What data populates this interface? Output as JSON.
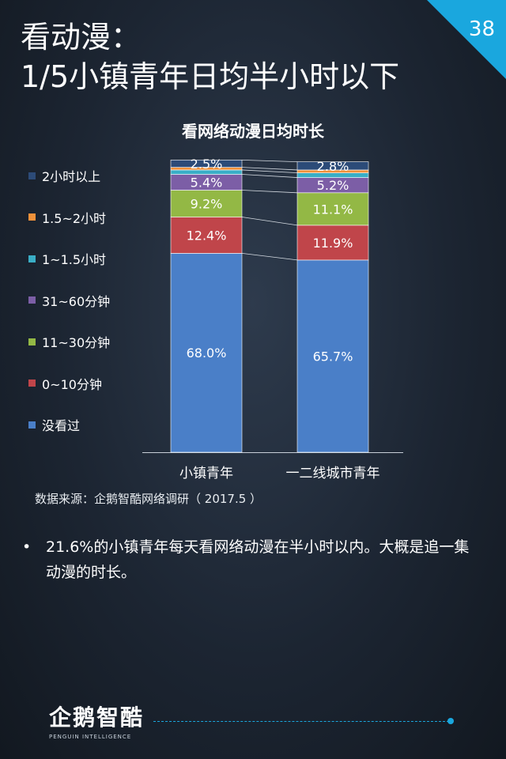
{
  "header": {
    "title_line1": "看动漫：",
    "title_line2": "1/5小镇青年日均半小时以下",
    "page_number": "38"
  },
  "source_note": "数据来源：企鹅智酷网络调研（  2017.5 ）",
  "bullet_text": "21.6%的小镇青年每天看网络动漫在半小时以内。大概是追一集动漫的时长。",
  "footer": {
    "logo_text": "企鹅智酷",
    "logo_subtitle": "PENGUIN INTELLIGENCE"
  },
  "colors": {
    "accent": "#1aa7de",
    "background": "#1c2532"
  },
  "chart_data": {
    "type": "bar",
    "stacked": true,
    "title": "看网络动漫日均时长",
    "categories": [
      "小镇青年",
      "一二线城市青年"
    ],
    "ylim": [
      0,
      100
    ],
    "legend_position": "left",
    "series": [
      {
        "name": "没看过",
        "color": "#4a7fc8",
        "values": [
          68.0,
          65.7
        ],
        "labels": [
          "68.0%",
          "65.7%"
        ]
      },
      {
        "name": "0~10分钟",
        "color": "#c0454a",
        "values": [
          12.4,
          11.9
        ],
        "labels": [
          "12.4%",
          "11.9%"
        ]
      },
      {
        "name": "11~30分钟",
        "color": "#93b845",
        "values": [
          9.2,
          11.1
        ],
        "labels": [
          "9.2%",
          "11.1%"
        ]
      },
      {
        "name": "31~60分钟",
        "color": "#7c5ea6",
        "values": [
          5.4,
          5.2
        ],
        "labels": [
          "5.4%",
          "5.2%"
        ]
      },
      {
        "name": "1~1.5小时",
        "color": "#3aaec6",
        "values": [
          1.5,
          1.6
        ],
        "labels": [
          "",
          ""
        ]
      },
      {
        "name": "1.5~2小时",
        "color": "#f0913a",
        "values": [
          0.9,
          1.0
        ],
        "labels": [
          "",
          ""
        ]
      },
      {
        "name": "2小时以上",
        "color": "#2c4b78",
        "values": [
          2.5,
          2.8
        ],
        "labels": [
          "2.5%",
          "2.8%"
        ]
      }
    ]
  }
}
